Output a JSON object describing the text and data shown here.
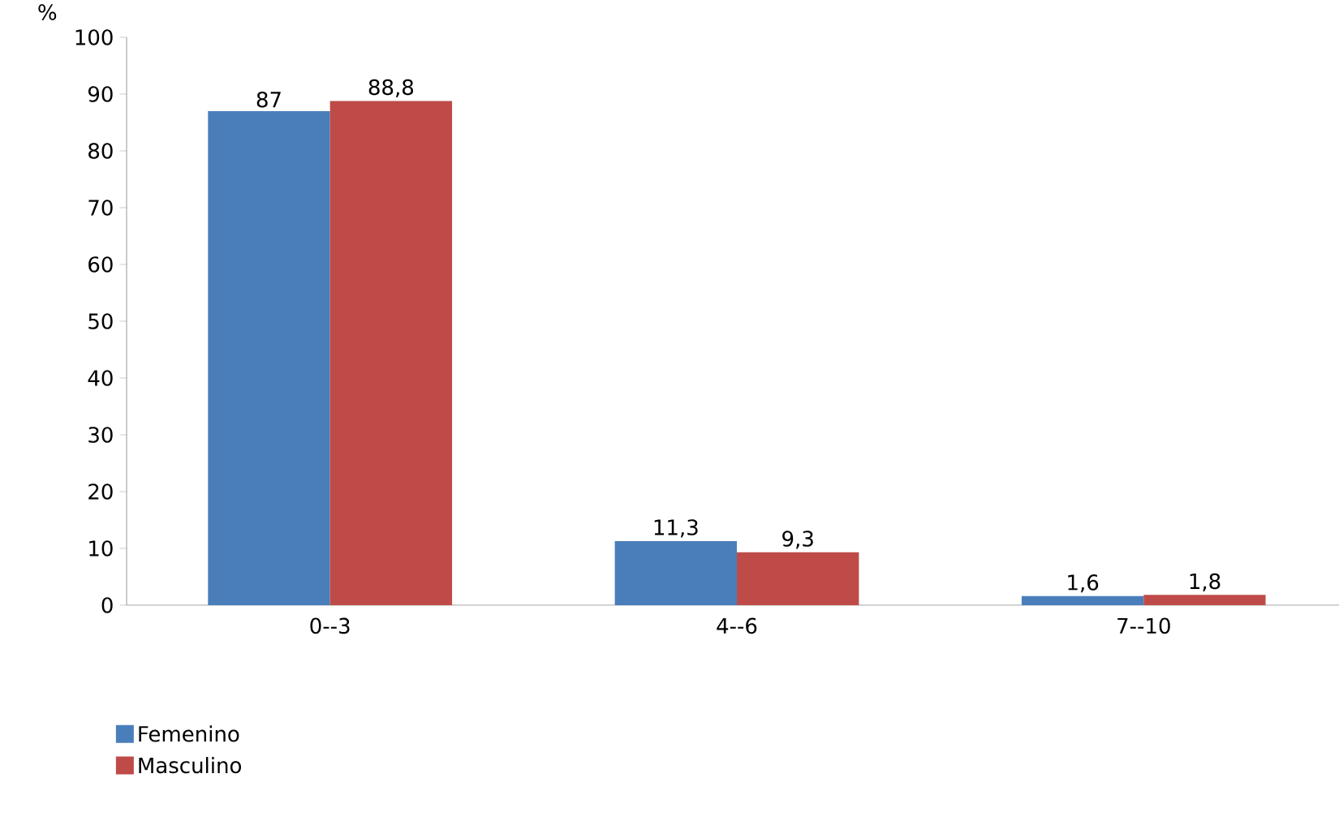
{
  "chart_data": {
    "type": "bar",
    "ylabel": "%",
    "categories": [
      "0--3",
      "4--6",
      "7--10"
    ],
    "series": [
      {
        "name": "Femenino",
        "color": "#4a7ebb",
        "values": [
          87,
          11.3,
          1.6
        ],
        "value_labels": [
          "87",
          "11,3",
          "1,6"
        ]
      },
      {
        "name": "Masculino",
        "color": "#be4b48",
        "values": [
          88.8,
          9.3,
          1.8
        ],
        "value_labels": [
          "88,8",
          "9,3",
          "1,8"
        ]
      }
    ],
    "ylim": [
      0,
      100
    ],
    "yticks": [
      0,
      10,
      20,
      30,
      40,
      50,
      60,
      70,
      80,
      90,
      100
    ],
    "grid": false,
    "legend": "bottom left"
  }
}
